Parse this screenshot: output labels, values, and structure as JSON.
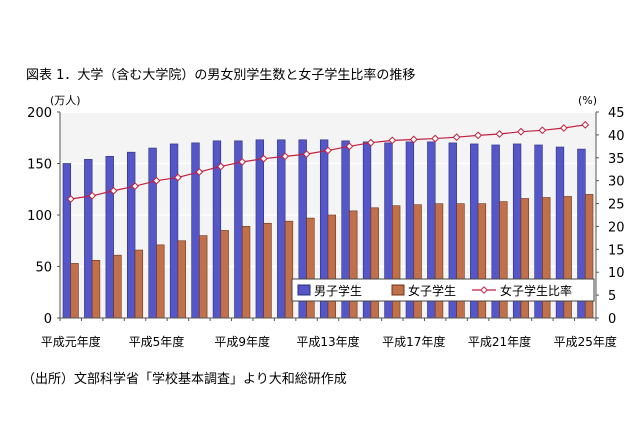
{
  "title": "図表 1．大学（含む大学院）の男女別学生数と女子学生比率の推移",
  "source": "（出所）文部科学省「学校基本調査」より大和総研作成",
  "colors": {
    "male_bar": "#5557c9",
    "male_bar_edge": "#2a2c7a",
    "female_bar": "#c0704a",
    "female_bar_edge": "#6e3418",
    "ratio_line": "#c02040",
    "plot_bg": "#f4f4f4",
    "grid": "#ffffff"
  },
  "chart_data": {
    "type": "bar",
    "y_unit_left": "(万人)",
    "y_unit_right": "(%)",
    "ylim_left": [
      0,
      200
    ],
    "yticks_left": [
      "0",
      "50",
      "100",
      "150",
      "200"
    ],
    "ylim_right": [
      0,
      45
    ],
    "yticks_right": [
      "0",
      "5",
      "10",
      "15",
      "20",
      "25",
      "30",
      "35",
      "40",
      "45"
    ],
    "x_tick_labels": [
      "平成元年度",
      "平成5年度",
      "平成9年度",
      "平成13年度",
      "平成17年度",
      "平成21年度",
      "平成25年度"
    ],
    "categories": [
      "平成元年度",
      "平成2年度",
      "平成3年度",
      "平成4年度",
      "平成5年度",
      "平成6年度",
      "平成7年度",
      "平成8年度",
      "平成9年度",
      "平成10年度",
      "平成11年度",
      "平成12年度",
      "平成13年度",
      "平成14年度",
      "平成15年度",
      "平成16年度",
      "平成17年度",
      "平成18年度",
      "平成19年度",
      "平成20年度",
      "平成21年度",
      "平成22年度",
      "平成23年度",
      "平成24年度",
      "平成25年度"
    ],
    "legend": [
      "男子学生",
      "女子学生",
      "女子学生比率"
    ],
    "series": [
      {
        "name": "男子学生",
        "axis": "left",
        "kind": "bar",
        "values": [
          150,
          154,
          157,
          161,
          165,
          169,
          170,
          172,
          172,
          173,
          173,
          173,
          173,
          172,
          171,
          170,
          171,
          171,
          170,
          169,
          168,
          169,
          168,
          166,
          164
        ]
      },
      {
        "name": "女子学生",
        "axis": "left",
        "kind": "bar",
        "values": [
          53,
          56,
          61,
          66,
          71,
          75,
          80,
          85,
          89,
          92,
          94,
          97,
          100,
          104,
          107,
          109,
          110,
          111,
          111,
          111,
          113,
          116,
          117,
          118,
          120
        ]
      },
      {
        "name": "女子学生比率",
        "axis": "right",
        "kind": "line",
        "values": [
          26,
          26.7,
          27.8,
          28.8,
          30,
          30.7,
          31.9,
          33.1,
          34.1,
          34.8,
          35.3,
          35.8,
          36.6,
          37.5,
          38.3,
          38.8,
          39,
          39.2,
          39.5,
          39.9,
          40.2,
          40.7,
          41,
          41.5,
          42.2
        ]
      }
    ]
  }
}
